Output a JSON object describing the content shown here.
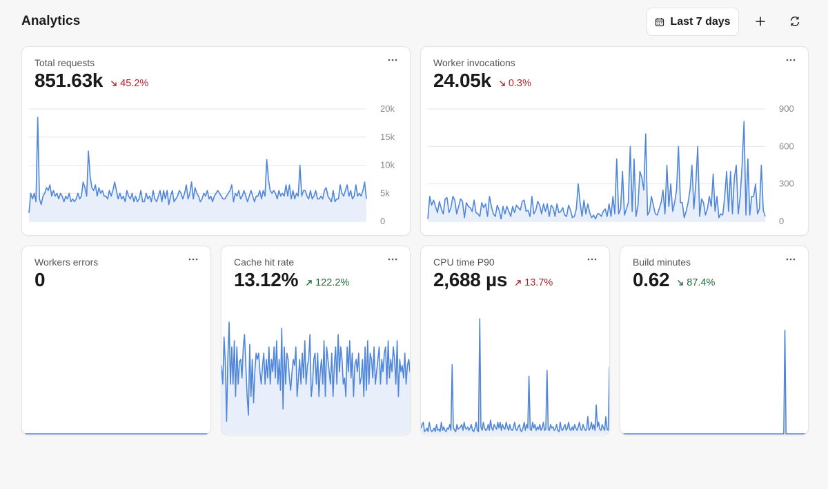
{
  "header": {
    "title": "Analytics",
    "range_label": "Last 7 days",
    "add_icon": "plus-icon",
    "refresh_icon": "refresh-icon",
    "calendar_icon": "calendar-icon"
  },
  "colors": {
    "line": "#4f86d9",
    "fill": "#e8effb",
    "grid": "#e6e6e6",
    "bad": "#b4232c",
    "good": "#1f6b3a"
  },
  "cards": [
    {
      "id": "total-requests",
      "title": "Total requests",
      "value": "851.63k",
      "change": "45.2%",
      "direction": "down",
      "tone": "bad",
      "y_ticks": [
        "20k",
        "15k",
        "10k",
        "5k",
        "0"
      ]
    },
    {
      "id": "worker-invocations",
      "title": "Worker invocations",
      "value": "24.05k",
      "change": "0.3%",
      "direction": "down",
      "tone": "bad",
      "y_ticks": [
        "900",
        "600",
        "300",
        "0"
      ]
    },
    {
      "id": "workers-errors",
      "title": "Workers errors",
      "value": "0"
    },
    {
      "id": "cache-hit-rate",
      "title": "Cache hit rate",
      "value": "13.12%",
      "change": "122.2%",
      "direction": "up",
      "tone": "good"
    },
    {
      "id": "cpu-time-p90",
      "title": "CPU time P90",
      "value": "2,688 µs",
      "change": "13.7%",
      "direction": "up",
      "tone": "bad"
    },
    {
      "id": "build-minutes",
      "title": "Build minutes",
      "value": "0.62",
      "change": "87.4%",
      "direction": "down",
      "tone": "good"
    }
  ],
  "chart_data": [
    {
      "type": "area",
      "title": "Total requests",
      "ylim": [
        0,
        20000
      ],
      "y": [
        1500,
        5000,
        4000,
        5000,
        3500,
        18500,
        4000,
        3000,
        4500,
        5000,
        6000,
        5500,
        6500,
        4500,
        5500,
        4500,
        5000,
        4000,
        5000,
        4500,
        3500,
        4500,
        4000,
        5000,
        3500,
        4000,
        3500,
        4000,
        5000,
        4000,
        4500,
        7000,
        6000,
        4500,
        12500,
        8000,
        6000,
        5500,
        6500,
        4500,
        6000,
        5000,
        5500,
        4500,
        4500,
        4000,
        5500,
        4500,
        5500,
        7000,
        5500,
        4000,
        5000,
        4000,
        4500,
        3500,
        5500,
        4500,
        4000,
        5000,
        3500,
        4500,
        3500,
        4000,
        5500,
        3500,
        3500,
        5000,
        4000,
        4500,
        3500,
        5500,
        4000,
        3500,
        4500,
        5500,
        3500,
        5500,
        4000,
        5500,
        3000,
        4500,
        5500,
        3500,
        4000,
        4500,
        5500,
        5000,
        4000,
        5000,
        6500,
        4000,
        5000,
        7000,
        4000,
        6000,
        5000,
        4500,
        3500,
        4000,
        5000,
        4500,
        5500,
        4000,
        4500,
        3500,
        4500,
        5000,
        5500,
        5000,
        4500,
        4000,
        4000,
        4500,
        5000,
        5500,
        6500,
        3500,
        5000,
        4500,
        5500,
        4000,
        4500,
        5500,
        4500,
        3500,
        4500,
        5500,
        4500,
        3500,
        4500,
        4500,
        5500,
        4000,
        5500,
        4500,
        11000,
        7500,
        5500,
        5000,
        5500,
        5000,
        4000,
        5500,
        4500,
        5000,
        4500,
        6500,
        4500,
        6500,
        4000,
        5500,
        4000,
        5000,
        4500,
        10000,
        4500,
        5500,
        5500,
        4500,
        4000,
        5500,
        4000,
        4500,
        5500,
        4000,
        4000,
        4500,
        4000,
        5500,
        6000,
        4500,
        4000,
        3500,
        5500,
        3500,
        4000,
        4000,
        6500,
        5000,
        4500,
        5500,
        6500,
        4500,
        5500,
        4000,
        4500,
        6500,
        4500,
        5000,
        4500,
        5500,
        7000,
        4000
      ]
    },
    {
      "type": "area",
      "title": "Worker invocations",
      "ylim": [
        0,
        900
      ],
      "y": [
        20,
        200,
        130,
        170,
        120,
        70,
        160,
        100,
        60,
        180,
        190,
        70,
        110,
        200,
        170,
        60,
        120,
        180,
        160,
        30,
        150,
        120,
        110,
        80,
        170,
        70,
        60,
        40,
        150,
        110,
        140,
        40,
        200,
        120,
        60,
        40,
        130,
        90,
        20,
        120,
        60,
        120,
        80,
        40,
        120,
        70,
        130,
        110,
        90,
        160,
        170,
        80,
        90,
        40,
        200,
        60,
        90,
        160,
        130,
        60,
        140,
        80,
        140,
        40,
        130,
        110,
        40,
        140,
        70,
        80,
        110,
        50,
        40,
        130,
        90,
        30,
        40,
        100,
        300,
        150,
        40,
        170,
        60,
        140,
        70,
        30,
        50,
        20,
        60,
        60,
        40,
        80,
        100,
        40,
        140,
        40,
        200,
        60,
        500,
        60,
        100,
        400,
        50,
        100,
        150,
        600,
        80,
        500,
        40,
        130,
        400,
        350,
        250,
        700,
        50,
        80,
        200,
        130,
        60,
        50,
        100,
        150,
        250,
        60,
        450,
        120,
        300,
        80,
        150,
        250,
        600,
        150,
        150,
        30,
        80,
        150,
        250,
        450,
        100,
        300,
        600,
        40,
        180,
        150,
        50,
        100,
        200,
        120,
        380,
        80,
        200,
        30,
        60,
        50,
        200,
        400,
        80,
        400,
        60,
        350,
        450,
        60,
        200,
        450,
        800,
        50,
        500,
        50,
        200,
        200,
        300,
        60,
        100,
        450,
        90,
        40
      ]
    },
    {
      "type": "area",
      "title": "Workers errors",
      "ylim": [
        0,
        1
      ],
      "y": [
        0,
        0
      ]
    },
    {
      "type": "area",
      "title": "Cache hit rate",
      "ylim": [
        0,
        100
      ],
      "y": [
        55,
        40,
        78,
        57,
        10,
        63,
        90,
        40,
        70,
        40,
        75,
        30,
        70,
        40,
        58,
        60,
        45,
        70,
        80,
        55,
        30,
        15,
        72,
        30,
        60,
        25,
        50,
        65,
        60,
        65,
        50,
        40,
        55,
        65,
        40,
        60,
        45,
        70,
        40,
        60,
        50,
        70,
        45,
        75,
        40,
        60,
        35,
        85,
        20,
        70,
        40,
        65,
        60,
        45,
        35,
        50,
        60,
        55,
        70,
        30,
        45,
        60,
        40,
        65,
        45,
        75,
        40,
        55,
        60,
        80,
        30,
        40,
        60,
        65,
        40,
        65,
        30,
        50,
        60,
        40,
        75,
        30,
        70,
        60,
        50,
        40,
        65,
        30,
        55,
        70,
        40,
        80,
        50,
        70,
        60,
        40,
        45,
        30,
        70,
        50,
        75,
        45,
        65,
        30,
        55,
        60,
        50,
        65,
        40,
        45,
        60,
        30,
        70,
        35,
        75,
        40,
        65,
        60,
        45,
        70,
        40,
        50,
        60,
        70,
        40,
        60,
        50,
        65,
        70,
        40,
        75,
        45,
        60,
        50,
        70,
        60,
        40,
        75,
        30,
        60,
        50,
        55,
        45,
        65,
        40,
        55,
        60,
        50,
        80
      ]
    },
    {
      "type": "area",
      "title": "CPU time P90",
      "ylim": [
        0,
        100
      ],
      "y": [
        5,
        8,
        10,
        2,
        3,
        5,
        2,
        10,
        4,
        2,
        3,
        5,
        2,
        8,
        3,
        4,
        2,
        10,
        3,
        6,
        3,
        2,
        5,
        4,
        8,
        3,
        60,
        6,
        3,
        2,
        8,
        4,
        5,
        6,
        8,
        3,
        10,
        5,
        4,
        6,
        3,
        5,
        8,
        3,
        2,
        5,
        10,
        3,
        2,
        100,
        6,
        3,
        10,
        5,
        3,
        4,
        8,
        3,
        12,
        5,
        3,
        8,
        6,
        4,
        10,
        5,
        10,
        3,
        8,
        5,
        4,
        10,
        6,
        3,
        8,
        4,
        3,
        5,
        10,
        4,
        3,
        6,
        8,
        3,
        2,
        5,
        10,
        3,
        8,
        5,
        50,
        4,
        3,
        10,
        5,
        8,
        3,
        6,
        4,
        8,
        3,
        5,
        10,
        3,
        4,
        55,
        4,
        3,
        8,
        5,
        6,
        3,
        4,
        8,
        3,
        2,
        10,
        4,
        3,
        6,
        8,
        3,
        5,
        10,
        4,
        3,
        6,
        3,
        8,
        5,
        3,
        6,
        10,
        4,
        3,
        8,
        5,
        3,
        4,
        15,
        3,
        5,
        10,
        4,
        8,
        3,
        25,
        6,
        10,
        4,
        3,
        8,
        5,
        3,
        15,
        4,
        3,
        58,
        10
      ]
    },
    {
      "type": "area",
      "title": "Build minutes",
      "ylim": [
        0,
        100
      ],
      "y": [
        0,
        0,
        0,
        0,
        0,
        0,
        0,
        0,
        0,
        0,
        0,
        0,
        0,
        0,
        0,
        0,
        0,
        0,
        0,
        0,
        0,
        0,
        0,
        0,
        0,
        0,
        0,
        0,
        0,
        0,
        0,
        0,
        0,
        0,
        0,
        0,
        0,
        0,
        0,
        0,
        0,
        0,
        0,
        0,
        0,
        0,
        0,
        0,
        0,
        0,
        0,
        0,
        0,
        0,
        0,
        0,
        0,
        0,
        0,
        0,
        0,
        0,
        0,
        0,
        0,
        0,
        0,
        0,
        0,
        0,
        0,
        0,
        0,
        0,
        0,
        0,
        0,
        0,
        0,
        0,
        0,
        0,
        0,
        0,
        0,
        0,
        0,
        0,
        0,
        0,
        0,
        0,
        0,
        0,
        0,
        0,
        0,
        0,
        0,
        0,
        0,
        0,
        0,
        0,
        0,
        0,
        0,
        0,
        0,
        0,
        0,
        0,
        0,
        0,
        0,
        0,
        0,
        0,
        0,
        0,
        0,
        0,
        0,
        0,
        0,
        0,
        0,
        0,
        0,
        0,
        0,
        0,
        0,
        0,
        0,
        0,
        0,
        0,
        0,
        0,
        0,
        0,
        0,
        0,
        0,
        0,
        0,
        0,
        100,
        0,
        0,
        0,
        0,
        0,
        0,
        0,
        0,
        0,
        0,
        0,
        0,
        0,
        0,
        0,
        0,
        0,
        0,
        0,
        0,
        0,
        0
      ]
    }
  ]
}
